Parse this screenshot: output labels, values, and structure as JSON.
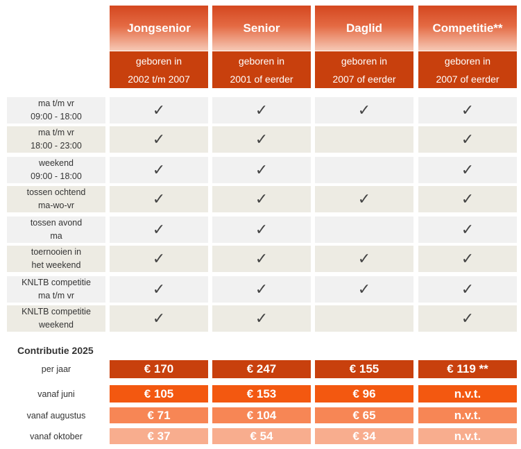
{
  "columns": [
    {
      "name": "Jongsenior",
      "sub1": "geboren in",
      "sub2": "2002 t/m 2007"
    },
    {
      "name": "Senior",
      "sub1": "geboren in",
      "sub2": "2001 of eerder"
    },
    {
      "name": "Daglid",
      "sub1": "geboren in",
      "sub2": "2007 of eerder"
    },
    {
      "name": "Competitie**",
      "sub1": "geboren in",
      "sub2": "2007 of eerder"
    }
  ],
  "check_symbol": "✓",
  "rows": [
    {
      "line1": "ma t/m vr",
      "line2": "09:00 - 18:00",
      "checks": [
        true,
        true,
        true,
        true
      ]
    },
    {
      "line1": "ma t/m vr",
      "line2": "18:00 - 23:00",
      "checks": [
        true,
        true,
        false,
        true
      ]
    },
    {
      "line1": "weekend",
      "line2": "09:00 - 18:00",
      "checks": [
        true,
        true,
        false,
        true
      ]
    },
    {
      "line1": "tossen ochtend",
      "line2": "ma-wo-vr",
      "checks": [
        true,
        true,
        true,
        true
      ]
    },
    {
      "line1": "tossen avond",
      "line2": "ma",
      "checks": [
        true,
        true,
        false,
        true
      ]
    },
    {
      "line1": "toernooien in",
      "line2": "het weekend",
      "checks": [
        true,
        true,
        true,
        true
      ]
    },
    {
      "line1": "KNLTB competitie",
      "line2": "ma t/m vr",
      "checks": [
        true,
        true,
        true,
        true
      ]
    },
    {
      "line1": "KNLTB competitie",
      "line2": "weekend",
      "checks": [
        true,
        true,
        false,
        true
      ]
    }
  ],
  "contributie": {
    "title": "Contributie 2025",
    "rows": [
      {
        "label": "per jaar",
        "values": [
          "€ 170",
          "€ 247",
          "€ 155",
          "€ 119 **"
        ]
      },
      {
        "label": "vanaf juni",
        "values": [
          "€ 105",
          "€ 153",
          "€ 96",
          "n.v.t."
        ]
      },
      {
        "label": "vanaf augustus",
        "values": [
          "€ 71",
          "€ 104",
          "€ 65",
          "n.v.t."
        ]
      },
      {
        "label": "vanaf oktober",
        "values": [
          "€ 37",
          "€ 54",
          "€ 34",
          "n.v.t."
        ]
      }
    ]
  },
  "colors": {
    "row_odd": "#f1f1f1",
    "row_even": "#edebe3",
    "price_rows": [
      "#c8400d",
      "#f35810",
      "#f78655",
      "#f8ad8e"
    ]
  }
}
